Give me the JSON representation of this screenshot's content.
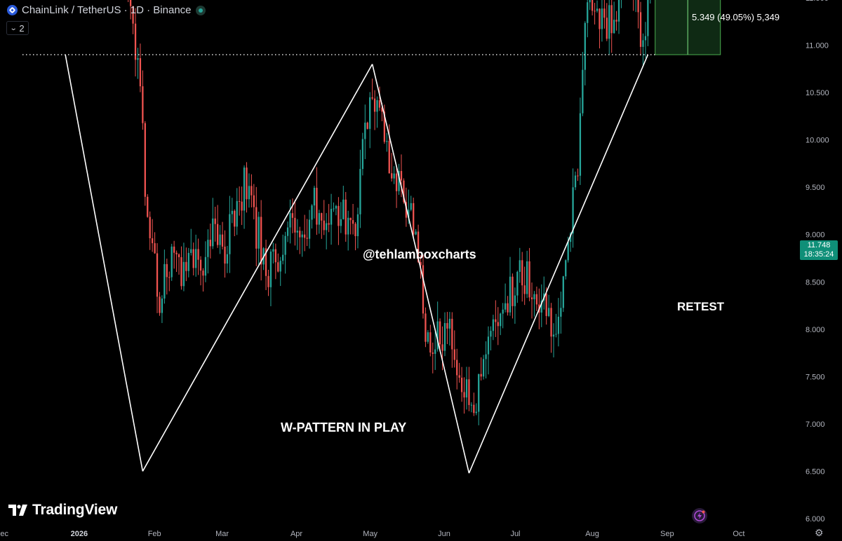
{
  "header": {
    "symbol": "ChainLink / TetherUS · 1D · Binance",
    "indicator_count": "2",
    "colors": {
      "coin": "#2a5ada",
      "live": "#26a69a"
    }
  },
  "annotations": {
    "watermark": "@tehlamboxcharts",
    "pattern_label": "W-PATTERN IN PLAY",
    "retest_label": "RETEST",
    "measure_label": "5.349 (49.05%) 5,349"
  },
  "price_tag": {
    "price": "11.748",
    "countdown": "18:35:24",
    "color": "#0f8f78"
  },
  "branding": {
    "logo_text": "TradingView"
  },
  "chart_data": {
    "type": "candlestick",
    "title": "ChainLink / TetherUS · 1D · Binance",
    "ylim": [
      6.0,
      16.75
    ],
    "y_ticks": [
      "6.000",
      "6.500",
      "7.000",
      "7.500",
      "8.000",
      "8.500",
      "9.000",
      "9.500",
      "10.000",
      "10.500",
      "11.000",
      "11.500",
      "12.000",
      "12.500",
      "13.000",
      "13.500",
      "14.000",
      "14.500",
      "15.000",
      "15.500",
      "16.000",
      "16.500"
    ],
    "x_ticks": [
      {
        "label": "ec",
        "day": 0
      },
      {
        "label": "2026",
        "day": 31
      },
      {
        "label": "Feb",
        "day": 62
      },
      {
        "label": "Mar",
        "day": 90
      },
      {
        "label": "Apr",
        "day": 121
      },
      {
        "label": "May",
        "day": 151
      },
      {
        "label": "Jun",
        "day": 182
      },
      {
        "label": "Jul",
        "day": 212
      },
      {
        "label": "Aug",
        "day": 243
      },
      {
        "label": "Sep",
        "day": 274
      },
      {
        "label": "Oct",
        "day": 304
      }
    ],
    "colors": {
      "up": "#26a69a",
      "down": "#ef5350"
    },
    "anchors": [
      [
        0,
        14.3
      ],
      [
        3,
        14.6
      ],
      [
        8,
        14.0
      ],
      [
        13,
        12.9
      ],
      [
        17,
        12.3
      ],
      [
        22,
        12.2
      ],
      [
        27,
        12.5
      ],
      [
        31,
        13.9
      ],
      [
        35,
        13.3
      ],
      [
        38,
        13.9
      ],
      [
        42,
        12.9
      ],
      [
        45,
        12.2
      ],
      [
        49,
        11.8
      ],
      [
        53,
        11.1
      ],
      [
        56,
        10.7
      ],
      [
        58,
        9.6
      ],
      [
        61,
        8.9
      ],
      [
        64,
        8.3
      ],
      [
        67,
        8.6
      ],
      [
        70,
        8.9
      ],
      [
        73,
        8.6
      ],
      [
        76,
        8.9
      ],
      [
        80,
        8.6
      ],
      [
        84,
        8.8
      ],
      [
        88,
        9.1
      ],
      [
        91,
        8.9
      ],
      [
        95,
        9.2
      ],
      [
        99,
        9.5
      ],
      [
        102,
        9.2
      ],
      [
        106,
        8.9
      ],
      [
        109,
        8.6
      ],
      [
        112,
        8.7
      ],
      [
        116,
        8.9
      ],
      [
        119,
        9.1
      ],
      [
        123,
        9.0
      ],
      [
        127,
        9.3
      ],
      [
        131,
        9.2
      ],
      [
        134,
        9.1
      ],
      [
        138,
        9.3
      ],
      [
        141,
        9.1
      ],
      [
        144,
        9.0
      ],
      [
        146,
        9.3
      ],
      [
        148,
        9.9
      ],
      [
        151,
        10.3
      ],
      [
        153,
        10.5
      ],
      [
        155,
        10.2
      ],
      [
        157,
        10.0
      ],
      [
        160,
        9.6
      ],
      [
        164,
        9.4
      ],
      [
        168,
        9.2
      ],
      [
        172,
        8.5
      ],
      [
        176,
        7.6
      ],
      [
        179,
        7.9
      ],
      [
        183,
        8.0
      ],
      [
        186,
        7.7
      ],
      [
        189,
        7.4
      ],
      [
        192,
        7.2
      ],
      [
        195,
        7.3
      ],
      [
        198,
        7.7
      ],
      [
        202,
        7.9
      ],
      [
        206,
        8.3
      ],
      [
        210,
        8.4
      ],
      [
        214,
        8.6
      ],
      [
        218,
        8.5
      ],
      [
        222,
        8.3
      ],
      [
        226,
        8.1
      ],
      [
        230,
        8.2
      ],
      [
        233,
        8.7
      ],
      [
        235,
        9.3
      ],
      [
        237,
        9.8
      ],
      [
        239,
        10.6
      ],
      [
        241,
        11.5
      ],
      [
        243,
        11.5
      ],
      [
        246,
        11.3
      ],
      [
        249,
        11.2
      ],
      [
        252,
        11.3
      ],
      [
        254,
        11.6
      ],
      [
        256,
        12.9
      ],
      [
        258,
        12.3
      ],
      [
        260,
        11.6
      ],
      [
        262,
        11.2
      ],
      [
        264,
        11.0
      ],
      [
        266,
        11.3
      ],
      [
        268,
        11.748
      ]
    ],
    "horizontal_level": 10.9,
    "trend_lines": [
      [
        [
          25,
          10.9
        ],
        [
          57,
          6.5
        ]
      ],
      [
        [
          57,
          6.5
        ],
        [
          152,
          10.8
        ]
      ],
      [
        [
          152,
          10.8
        ],
        [
          192,
          6.48
        ]
      ],
      [
        [
          192,
          6.48
        ],
        [
          266,
          10.9
        ]
      ]
    ],
    "target_zone": {
      "from_day": 269,
      "to_day": 296,
      "low": 10.9,
      "high": 16.25
    }
  }
}
